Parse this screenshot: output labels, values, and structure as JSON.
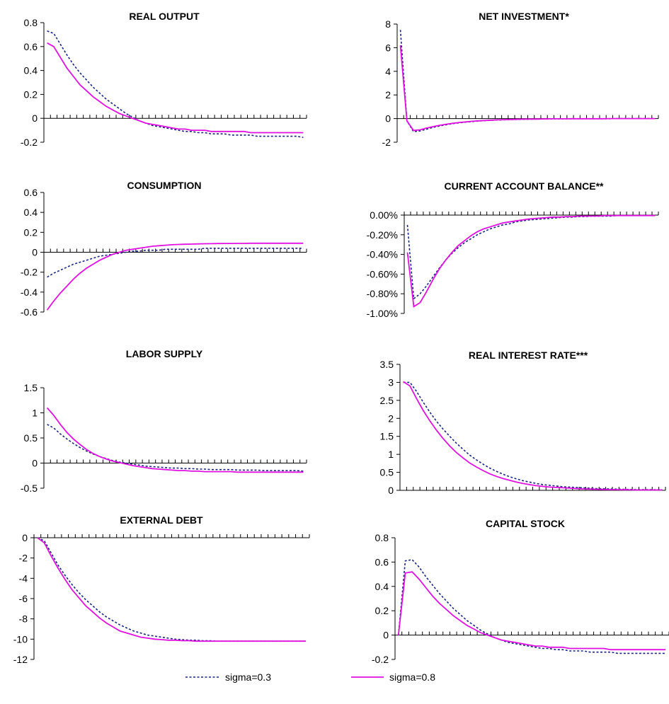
{
  "legend": [
    {
      "label": "sigma=0.3",
      "color": "#1a2580",
      "dash": true
    },
    {
      "label": "sigma=0.8",
      "color": "#e011e0",
      "dash": false
    }
  ],
  "chart_data": [
    {
      "type": "line",
      "title": "REAL OUTPUT",
      "ylim": [
        -0.2,
        0.8
      ],
      "yticks": [
        "0.8",
        "0.6",
        "0.4",
        "0.2",
        "0",
        "-0.2"
      ],
      "x": [
        1,
        2,
        3,
        4,
        5,
        6,
        7,
        8,
        9,
        10,
        11,
        12,
        13,
        14,
        15,
        16,
        17,
        18,
        19,
        20,
        21,
        22,
        23,
        24,
        25,
        26,
        27,
        28,
        29,
        30,
        31,
        32,
        33,
        34,
        35,
        36,
        37,
        38,
        39,
        40
      ],
      "series": [
        {
          "name": "sigma=0.3",
          "values": [
            0.73,
            0.71,
            0.62,
            0.53,
            0.45,
            0.38,
            0.32,
            0.26,
            0.21,
            0.16,
            0.12,
            0.08,
            0.04,
            0.01,
            -0.02,
            -0.04,
            -0.06,
            -0.07,
            -0.08,
            -0.09,
            -0.1,
            -0.11,
            -0.11,
            -0.12,
            -0.12,
            -0.13,
            -0.13,
            -0.13,
            -0.14,
            -0.14,
            -0.14,
            -0.14,
            -0.15,
            -0.15,
            -0.15,
            -0.15,
            -0.15,
            -0.15,
            -0.15,
            -0.16
          ]
        },
        {
          "name": "sigma=0.8",
          "values": [
            0.63,
            0.6,
            0.51,
            0.42,
            0.35,
            0.28,
            0.23,
            0.18,
            0.14,
            0.1,
            0.07,
            0.04,
            0.02,
            0.0,
            -0.02,
            -0.04,
            -0.05,
            -0.06,
            -0.07,
            -0.08,
            -0.09,
            -0.09,
            -0.1,
            -0.1,
            -0.1,
            -0.11,
            -0.11,
            -0.11,
            -0.11,
            -0.11,
            -0.11,
            -0.12,
            -0.12,
            -0.12,
            -0.12,
            -0.12,
            -0.12,
            -0.12,
            -0.12,
            -0.12
          ]
        }
      ]
    },
    {
      "type": "line",
      "title": "NET INVESTMENT*",
      "ylim": [
        -2,
        8
      ],
      "yticks": [
        "8",
        "6",
        "4",
        "2",
        "0",
        "-2"
      ],
      "x": [
        1,
        2,
        3,
        4,
        5,
        6,
        7,
        8,
        9,
        10,
        11,
        12,
        13,
        14,
        15,
        16,
        17,
        18,
        19,
        20,
        21,
        22,
        23,
        24,
        25,
        26,
        27,
        28,
        29,
        30,
        31,
        32,
        33,
        34,
        35,
        36,
        37,
        38,
        39,
        40
      ],
      "series": [
        {
          "name": "sigma=0.3",
          "values": [
            7.5,
            -0.2,
            -1.1,
            -1.05,
            -0.9,
            -0.75,
            -0.62,
            -0.52,
            -0.43,
            -0.36,
            -0.3,
            -0.25,
            -0.21,
            -0.17,
            -0.14,
            -0.12,
            -0.1,
            -0.08,
            -0.07,
            -0.06,
            -0.05,
            -0.04,
            -0.03,
            -0.03,
            -0.02,
            -0.02,
            -0.02,
            -0.01,
            -0.01,
            -0.01,
            -0.01,
            -0.01,
            -0.01,
            0,
            0,
            0,
            0,
            0,
            0,
            0
          ]
        },
        {
          "name": "sigma=0.8",
          "values": [
            6.2,
            -0.2,
            -1.0,
            -0.95,
            -0.8,
            -0.68,
            -0.57,
            -0.48,
            -0.4,
            -0.33,
            -0.28,
            -0.23,
            -0.19,
            -0.16,
            -0.13,
            -0.11,
            -0.09,
            -0.07,
            -0.06,
            -0.05,
            -0.04,
            -0.04,
            -0.03,
            -0.02,
            -0.02,
            -0.02,
            -0.01,
            -0.01,
            -0.01,
            -0.01,
            -0.01,
            -0.01,
            0,
            0,
            0,
            0,
            0,
            0,
            0,
            0
          ]
        }
      ]
    },
    {
      "type": "line",
      "title": "CONSUMPTION",
      "ylim": [
        -0.6,
        0.6
      ],
      "yticks": [
        "0.6",
        "0.4",
        "0.2",
        "0",
        "-0.2",
        "-0.4",
        "-0.6"
      ],
      "x": [
        1,
        2,
        3,
        4,
        5,
        6,
        7,
        8,
        9,
        10,
        11,
        12,
        13,
        14,
        15,
        16,
        17,
        18,
        19,
        20,
        21,
        22,
        23,
        24,
        25,
        26,
        27,
        28,
        29,
        30,
        31,
        32,
        33,
        34,
        35,
        36,
        37,
        38,
        39,
        40
      ],
      "series": [
        {
          "name": "sigma=0.3",
          "values": [
            -0.25,
            -0.21,
            -0.18,
            -0.15,
            -0.12,
            -0.1,
            -0.08,
            -0.06,
            -0.04,
            -0.03,
            -0.02,
            -0.01,
            0.0,
            0.01,
            0.01,
            0.02,
            0.02,
            0.02,
            0.03,
            0.03,
            0.03,
            0.03,
            0.03,
            0.03,
            0.04,
            0.04,
            0.04,
            0.04,
            0.04,
            0.04,
            0.04,
            0.04,
            0.04,
            0.04,
            0.04,
            0.04,
            0.04,
            0.04,
            0.04,
            0.04
          ]
        },
        {
          "name": "sigma=0.8",
          "values": [
            -0.58,
            -0.49,
            -0.41,
            -0.34,
            -0.27,
            -0.21,
            -0.16,
            -0.12,
            -0.08,
            -0.05,
            -0.02,
            0.0,
            0.02,
            0.03,
            0.04,
            0.05,
            0.06,
            0.065,
            0.07,
            0.075,
            0.078,
            0.08,
            0.082,
            0.084,
            0.085,
            0.086,
            0.087,
            0.088,
            0.088,
            0.089,
            0.089,
            0.09,
            0.09,
            0.09,
            0.09,
            0.09,
            0.09,
            0.09,
            0.09,
            0.09
          ]
        }
      ]
    },
    {
      "type": "line",
      "title": "CURRENT ACCOUNT BALANCE**",
      "ylim": [
        -1.0,
        0.0
      ],
      "yticks": [
        "0.00%",
        "-0.20%",
        "-0.40%",
        "-0.60%",
        "-0.80%",
        "-1.00%"
      ],
      "x": [
        1,
        2,
        3,
        4,
        5,
        6,
        7,
        8,
        9,
        10,
        11,
        12,
        13,
        14,
        15,
        16,
        17,
        18,
        19,
        20,
        21,
        22,
        23,
        24,
        25,
        26,
        27,
        28,
        29,
        30,
        31,
        32,
        33,
        34,
        35,
        36,
        37,
        38,
        39,
        40
      ],
      "series": [
        {
          "name": "sigma=0.3",
          "values": [
            -0.1,
            -0.85,
            -0.8,
            -0.72,
            -0.63,
            -0.54,
            -0.46,
            -0.39,
            -0.33,
            -0.28,
            -0.24,
            -0.2,
            -0.17,
            -0.14,
            -0.12,
            -0.1,
            -0.09,
            -0.07,
            -0.06,
            -0.05,
            -0.045,
            -0.04,
            -0.035,
            -0.03,
            -0.025,
            -0.02,
            -0.02,
            -0.015,
            -0.015,
            -0.01,
            -0.01,
            -0.01,
            -0.01,
            -0.005,
            -0.005,
            -0.005,
            -0.005,
            -0.005,
            -0.005,
            -0.005
          ]
        },
        {
          "name": "sigma=0.8",
          "values": [
            -0.38,
            -0.93,
            -0.89,
            -0.78,
            -0.66,
            -0.55,
            -0.46,
            -0.38,
            -0.31,
            -0.26,
            -0.21,
            -0.17,
            -0.14,
            -0.12,
            -0.1,
            -0.08,
            -0.07,
            -0.06,
            -0.05,
            -0.04,
            -0.035,
            -0.03,
            -0.025,
            -0.02,
            -0.02,
            -0.015,
            -0.015,
            -0.01,
            -0.01,
            -0.01,
            -0.01,
            -0.005,
            -0.005,
            -0.005,
            -0.005,
            -0.005,
            -0.005,
            -0.005,
            -0.005,
            -0.005
          ]
        }
      ]
    },
    {
      "type": "line",
      "title": "LABOR SUPPLY",
      "ylim": [
        -0.5,
        1.5
      ],
      "yticks": [
        "1.5",
        "1",
        "0.5",
        "0",
        "-0.5"
      ],
      "x": [
        1,
        2,
        3,
        4,
        5,
        6,
        7,
        8,
        9,
        10,
        11,
        12,
        13,
        14,
        15,
        16,
        17,
        18,
        19,
        20,
        21,
        22,
        23,
        24,
        25,
        26,
        27,
        28,
        29,
        30,
        31,
        32,
        33,
        34,
        35,
        36,
        37,
        38,
        39,
        40
      ],
      "series": [
        {
          "name": "sigma=0.3",
          "values": [
            0.77,
            0.7,
            0.58,
            0.48,
            0.39,
            0.31,
            0.24,
            0.18,
            0.13,
            0.09,
            0.05,
            0.02,
            0.0,
            -0.02,
            -0.04,
            -0.06,
            -0.07,
            -0.08,
            -0.09,
            -0.1,
            -0.1,
            -0.11,
            -0.11,
            -0.12,
            -0.12,
            -0.13,
            -0.13,
            -0.13,
            -0.13,
            -0.14,
            -0.14,
            -0.14,
            -0.14,
            -0.15,
            -0.15,
            -0.15,
            -0.15,
            -0.15,
            -0.15,
            -0.16
          ]
        },
        {
          "name": "sigma=0.8",
          "values": [
            1.1,
            0.95,
            0.77,
            0.61,
            0.48,
            0.37,
            0.27,
            0.19,
            0.13,
            0.08,
            0.04,
            0.01,
            -0.02,
            -0.05,
            -0.07,
            -0.09,
            -0.11,
            -0.12,
            -0.13,
            -0.14,
            -0.15,
            -0.15,
            -0.16,
            -0.16,
            -0.17,
            -0.17,
            -0.17,
            -0.17,
            -0.17,
            -0.18,
            -0.18,
            -0.18,
            -0.18,
            -0.18,
            -0.18,
            -0.18,
            -0.18,
            -0.18,
            -0.18,
            -0.18
          ]
        }
      ]
    },
    {
      "type": "line",
      "title": "REAL INTEREST RATE***",
      "ylim": [
        0,
        3.5
      ],
      "yticks": [
        "3.5",
        "3",
        "2.5",
        "2",
        "1.5",
        "1",
        "0.5",
        "0"
      ],
      "x": [
        1,
        2,
        3,
        4,
        5,
        6,
        7,
        8,
        9,
        10,
        11,
        12,
        13,
        14,
        15,
        16,
        17,
        18,
        19,
        20,
        21,
        22,
        23,
        24,
        25,
        26,
        27,
        28,
        29,
        30,
        31,
        32,
        33,
        34,
        35,
        36,
        37,
        38,
        39,
        40
      ],
      "series": [
        {
          "name": "sigma=0.3",
          "values": [
            3.0,
            3.0,
            2.75,
            2.45,
            2.17,
            1.92,
            1.7,
            1.5,
            1.31,
            1.14,
            0.98,
            0.85,
            0.73,
            0.62,
            0.53,
            0.45,
            0.38,
            0.32,
            0.27,
            0.23,
            0.19,
            0.16,
            0.14,
            0.12,
            0.1,
            0.09,
            0.08,
            0.07,
            0.06,
            0.05,
            0.045,
            0.04,
            0.035,
            0.03,
            0.025,
            0.02,
            0.02,
            0.02,
            0.015,
            0.015
          ]
        },
        {
          "name": "sigma=0.8",
          "values": [
            3.02,
            2.9,
            2.55,
            2.22,
            1.93,
            1.67,
            1.44,
            1.23,
            1.05,
            0.9,
            0.76,
            0.65,
            0.55,
            0.46,
            0.39,
            0.33,
            0.28,
            0.23,
            0.19,
            0.16,
            0.13,
            0.11,
            0.09,
            0.08,
            0.07,
            0.06,
            0.05,
            0.04,
            0.035,
            0.03,
            0.025,
            0.02,
            0.02,
            0.015,
            0.015,
            0.01,
            0.01,
            0.01,
            0.01,
            0.01
          ]
        }
      ]
    },
    {
      "type": "line",
      "title": "EXTERNAL DEBT",
      "ylim": [
        -12,
        0
      ],
      "yticks": [
        "0",
        "-2",
        "-4",
        "-6",
        "-8",
        "-10",
        "-12"
      ],
      "x": [
        1,
        2,
        3,
        4,
        5,
        6,
        7,
        8,
        9,
        10,
        11,
        12,
        13,
        14,
        15,
        16,
        17,
        18,
        19,
        20,
        21,
        22,
        23,
        24,
        25,
        26,
        27,
        28,
        29,
        30,
        31,
        32,
        33,
        34,
        35,
        36,
        37,
        38,
        39,
        40
      ],
      "series": [
        {
          "name": "sigma=0.3",
          "values": [
            0,
            -0.3,
            -1.5,
            -2.7,
            -3.7,
            -4.6,
            -5.4,
            -6.1,
            -6.7,
            -7.3,
            -7.8,
            -8.2,
            -8.6,
            -8.9,
            -9.2,
            -9.4,
            -9.6,
            -9.7,
            -9.8,
            -9.9,
            -10.0,
            -10.05,
            -10.1,
            -10.1,
            -10.15,
            -10.15,
            -10.2,
            -10.2,
            -10.2,
            -10.2,
            -10.2,
            -10.2,
            -10.2,
            -10.2,
            -10.2,
            -10.2,
            -10.2,
            -10.2,
            -10.2,
            -10.2
          ]
        },
        {
          "name": "sigma=0.8",
          "values": [
            0,
            -0.5,
            -1.8,
            -3.0,
            -4.1,
            -5.1,
            -5.9,
            -6.7,
            -7.3,
            -7.9,
            -8.4,
            -8.8,
            -9.2,
            -9.4,
            -9.6,
            -9.8,
            -9.9,
            -10.0,
            -10.05,
            -10.1,
            -10.1,
            -10.15,
            -10.15,
            -10.2,
            -10.2,
            -10.2,
            -10.2,
            -10.2,
            -10.2,
            -10.2,
            -10.2,
            -10.2,
            -10.2,
            -10.2,
            -10.2,
            -10.2,
            -10.2,
            -10.2,
            -10.2,
            -10.2
          ]
        }
      ]
    },
    {
      "type": "line",
      "title": "CAPITAL STOCK",
      "ylim": [
        -0.2,
        0.8
      ],
      "yticks": [
        "0.8",
        "0.6",
        "0.4",
        "0.2",
        "0",
        "-0.2"
      ],
      "x": [
        1,
        2,
        3,
        4,
        5,
        6,
        7,
        8,
        9,
        10,
        11,
        12,
        13,
        14,
        15,
        16,
        17,
        18,
        19,
        20,
        21,
        22,
        23,
        24,
        25,
        26,
        27,
        28,
        29,
        30,
        31,
        32,
        33,
        34,
        35,
        36,
        37,
        38,
        39,
        40
      ],
      "series": [
        {
          "name": "sigma=0.3",
          "values": [
            0,
            0.61,
            0.62,
            0.56,
            0.48,
            0.41,
            0.34,
            0.28,
            0.22,
            0.17,
            0.12,
            0.08,
            0.04,
            0.01,
            -0.02,
            -0.04,
            -0.06,
            -0.07,
            -0.08,
            -0.09,
            -0.1,
            -0.11,
            -0.11,
            -0.12,
            -0.12,
            -0.13,
            -0.13,
            -0.13,
            -0.14,
            -0.14,
            -0.14,
            -0.14,
            -0.15,
            -0.15,
            -0.15,
            -0.15,
            -0.15,
            -0.15,
            -0.15,
            -0.15
          ]
        },
        {
          "name": "sigma=0.8",
          "values": [
            0,
            0.51,
            0.52,
            0.46,
            0.39,
            0.32,
            0.26,
            0.21,
            0.16,
            0.12,
            0.08,
            0.05,
            0.02,
            0.0,
            -0.02,
            -0.04,
            -0.05,
            -0.06,
            -0.07,
            -0.08,
            -0.09,
            -0.09,
            -0.1,
            -0.1,
            -0.1,
            -0.11,
            -0.11,
            -0.11,
            -0.11,
            -0.11,
            -0.11,
            -0.12,
            -0.12,
            -0.12,
            -0.12,
            -0.12,
            -0.12,
            -0.12,
            -0.12,
            -0.12
          ]
        }
      ]
    }
  ]
}
